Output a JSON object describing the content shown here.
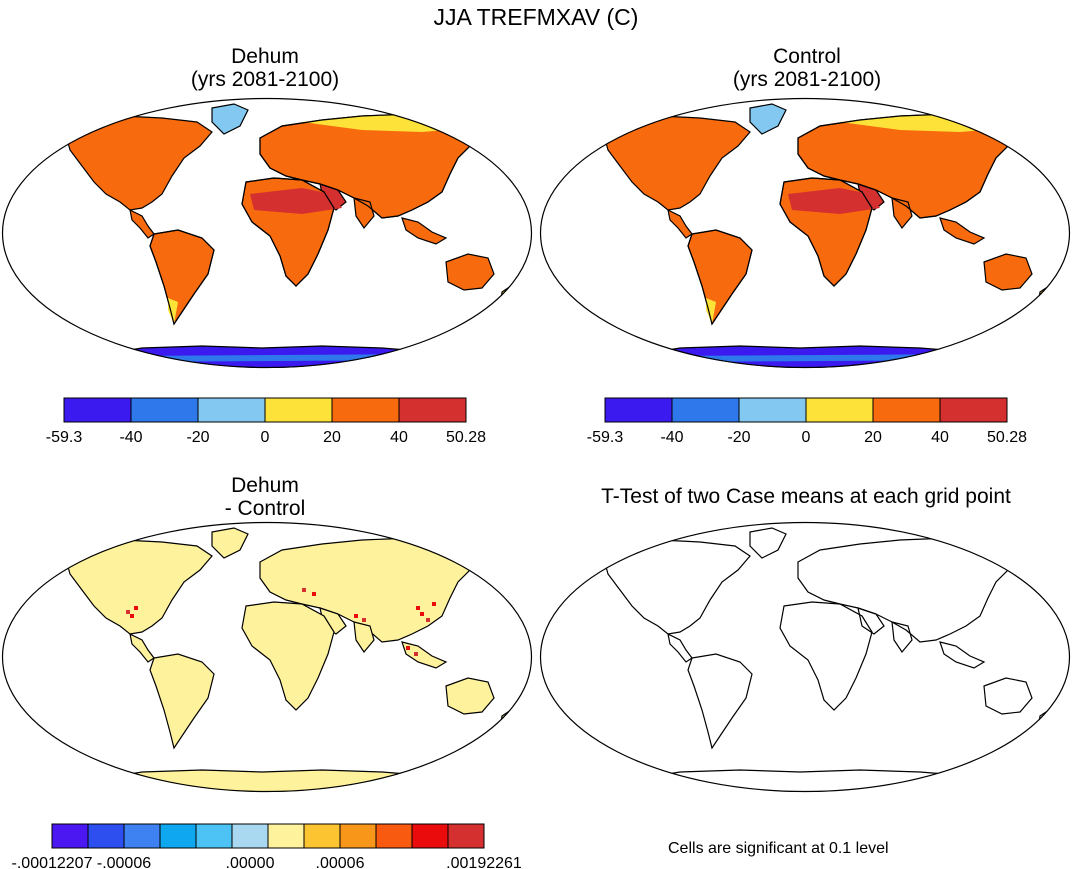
{
  "title": "JJA TREFMXAV (C)",
  "panels": {
    "dehum": {
      "title": "Dehum",
      "subtitle": "(yrs 2081-2100)"
    },
    "control": {
      "title": "Control",
      "subtitle": "(yrs 2081-2100)"
    },
    "diff": {
      "title": "Dehum",
      "subtitle": "- Control"
    },
    "ttest": {
      "title": "T-Test of two Case means at each grid point",
      "note": "Cells are significant at 0.1 level"
    }
  },
  "colorbar_main": {
    "colors": [
      "#3b1af0",
      "#2e78eb",
      "#82c8f0",
      "#fde23a",
      "#f86a0e",
      "#d3302f"
    ],
    "labels": [
      "-59.3",
      "-40",
      "-20",
      "0",
      "20",
      "40",
      "50.28"
    ]
  },
  "colorbar_diff": {
    "colors": [
      "#4b18f2",
      "#2d4ff0",
      "#3d82f0",
      "#0ea7f0",
      "#4cc2f5",
      "#a8d9f0",
      "#fff29c",
      "#fdc431",
      "#f8961a",
      "#f85a0f",
      "#ea0c0c",
      "#d3302f"
    ],
    "labels": [
      "-.00012207",
      "-.00006",
      ".00000",
      ".00006",
      ".00192261"
    ]
  },
  "palette": {
    "hot": "#d3302f",
    "warm": "#f86a0e",
    "mild": "#fde23a",
    "cool": "#82c8f0",
    "cold": "#2e78eb",
    "frigid": "#3b1af0",
    "diff_land": "#fff29c",
    "diff_hot": "#ea0c0c"
  }
}
